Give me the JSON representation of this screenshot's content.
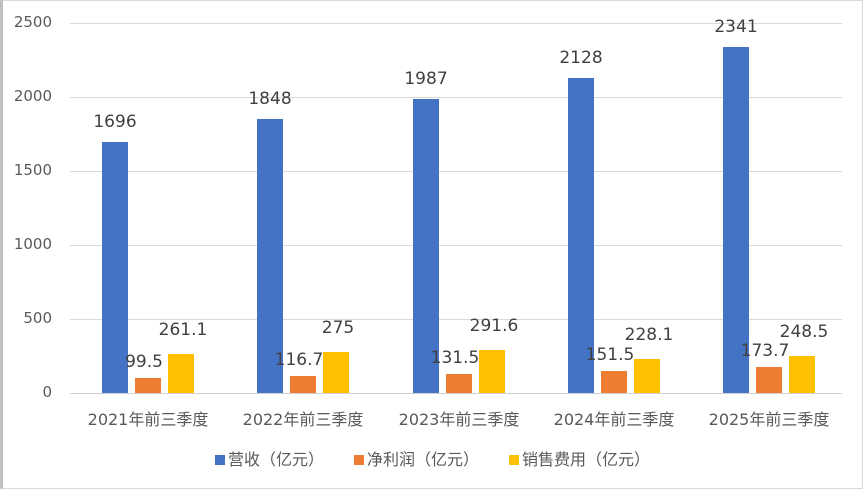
{
  "chart_data": {
    "type": "bar",
    "title": "",
    "xlabel": "",
    "ylabel": "",
    "ylim": [
      0,
      2500
    ],
    "yticks": [
      0,
      500,
      1000,
      1500,
      2000,
      2500
    ],
    "grid": true,
    "legend_position": "bottom",
    "categories": [
      "2021年前三季度",
      "2022年前三季度",
      "2023年前三季度",
      "2024年前三季度",
      "2025年前三季度"
    ],
    "series": [
      {
        "name": "营收（亿元）",
        "color": "#4472C4",
        "values": [
          1696,
          1848,
          1987,
          2128,
          2341
        ],
        "labels": [
          "1696",
          "1848",
          "1987",
          "2128",
          "2341"
        ]
      },
      {
        "name": "净利润（亿元）",
        "color": "#ED7D31",
        "values": [
          99.5,
          116.7,
          131.5,
          151.5,
          173.7
        ],
        "labels": [
          "99.5",
          "116.7",
          "131.5",
          "151.5",
          "173.7"
        ]
      },
      {
        "name": "销售费用（亿元）",
        "color": "#FFC000",
        "values": [
          261.1,
          275,
          291.6,
          228.1,
          248.5
        ],
        "labels": [
          "261.1",
          "275",
          "291.6",
          "228.1",
          "248.5"
        ]
      }
    ]
  }
}
